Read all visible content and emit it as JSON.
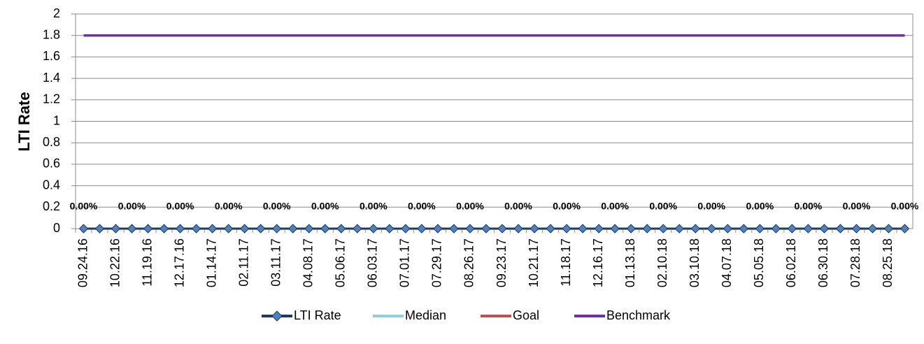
{
  "chart_data": {
    "type": "line",
    "y_label": "LTI Rate",
    "categories": [
      "09.24.16",
      null,
      "10.22.16",
      null,
      "11.19.16",
      null,
      "12.17.16",
      null,
      "01.14.17",
      null,
      "02.11.17",
      null,
      "03.11.17",
      null,
      "04.08.17",
      null,
      "05.06.17",
      null,
      "06.03.17",
      null,
      "07.01.17",
      null,
      "07.29.17",
      null,
      "08.26.17",
      null,
      "09.23.17",
      null,
      "10.21.17",
      null,
      "11.18.17",
      null,
      "12.16.17",
      null,
      "01.13.18",
      null,
      "02.10.18",
      null,
      "03.10.18",
      null,
      "04.07.18",
      null,
      "05.05.18",
      null,
      "06.02.18",
      null,
      "06.30.18",
      null,
      "07.28.18",
      null,
      "08.25.18",
      null
    ],
    "series": [
      {
        "name": "LTI Rate",
        "color": "#1f3864",
        "marker": "diamond",
        "marker_color": "#4f81bd",
        "values": [
          0,
          0,
          0,
          0,
          0,
          0,
          0,
          0,
          0,
          0,
          0,
          0,
          0,
          0,
          0,
          0,
          0,
          0,
          0,
          0,
          0,
          0,
          0,
          0,
          0,
          0,
          0,
          0,
          0,
          0,
          0,
          0,
          0,
          0,
          0,
          0,
          0,
          0,
          0,
          0,
          0,
          0,
          0,
          0,
          0,
          0,
          0,
          0,
          0,
          0,
          0,
          0
        ],
        "value_labels": [
          "0.00%",
          null,
          null,
          "0.00%",
          null,
          null,
          "0.00%",
          null,
          null,
          "0.00%",
          null,
          null,
          "0.00%",
          null,
          null,
          "0.00%",
          null,
          null,
          "0.00%",
          null,
          null,
          "0.00%",
          null,
          null,
          "0.00%",
          null,
          null,
          "0.00%",
          null,
          null,
          "0.00%",
          null,
          null,
          "0.00%",
          null,
          null,
          "0.00%",
          null,
          null,
          "0.00%",
          null,
          null,
          "0.00%",
          null,
          null,
          "0.00%",
          null,
          null,
          "0.00%",
          null,
          null,
          "0.00%"
        ]
      },
      {
        "name": "Median",
        "color": "#93cddd",
        "values": [
          0,
          0,
          0,
          0,
          0,
          0,
          0,
          0,
          0,
          0,
          0,
          0,
          0,
          0,
          0,
          0,
          0,
          0,
          0,
          0,
          0,
          0,
          0,
          0,
          0,
          0,
          0,
          0,
          0,
          0,
          0,
          0,
          0,
          0,
          0,
          0,
          0,
          0,
          0,
          0,
          0,
          0,
          0,
          0,
          0,
          0,
          0,
          0,
          0,
          0,
          0,
          0
        ]
      },
      {
        "name": "Goal",
        "color": "#c0504d",
        "values": [
          0,
          0,
          0,
          0,
          0,
          0,
          0,
          0,
          0,
          0,
          0,
          0,
          0,
          0,
          0,
          0,
          0,
          0,
          0,
          0,
          0,
          0,
          0,
          0,
          0,
          0,
          0,
          0,
          0,
          0,
          0,
          0,
          0,
          0,
          0,
          0,
          0,
          0,
          0,
          0,
          0,
          0,
          0,
          0,
          0,
          0,
          0,
          0,
          0,
          0,
          0,
          0
        ]
      },
      {
        "name": "Benchmark",
        "color": "#7030a0",
        "values": [
          1.8,
          1.8,
          1.8,
          1.8,
          1.8,
          1.8,
          1.8,
          1.8,
          1.8,
          1.8,
          1.8,
          1.8,
          1.8,
          1.8,
          1.8,
          1.8,
          1.8,
          1.8,
          1.8,
          1.8,
          1.8,
          1.8,
          1.8,
          1.8,
          1.8,
          1.8,
          1.8,
          1.8,
          1.8,
          1.8,
          1.8,
          1.8,
          1.8,
          1.8,
          1.8,
          1.8,
          1.8,
          1.8,
          1.8,
          1.8,
          1.8,
          1.8,
          1.8,
          1.8,
          1.8,
          1.8,
          1.8,
          1.8,
          1.8,
          1.8,
          1.8,
          1.8
        ]
      }
    ],
    "ylim": [
      0,
      2
    ],
    "yticks": [
      0,
      0.2,
      0.4,
      0.6,
      0.8,
      1,
      1.2,
      1.4,
      1.6,
      1.8,
      2
    ],
    "grid": true,
    "legend": "bottom"
  }
}
